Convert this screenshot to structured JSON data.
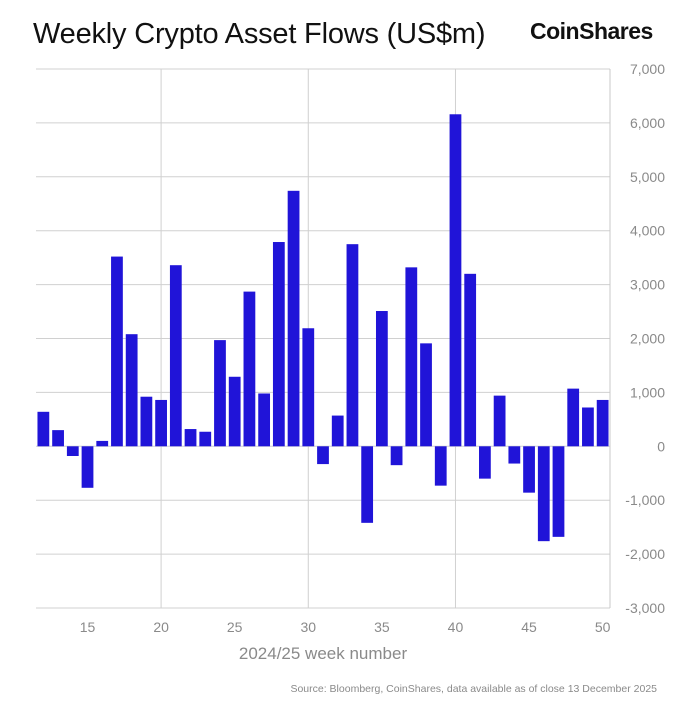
{
  "title": "Weekly Crypto Asset Flows (US$m)",
  "logo_text": "CoinShares",
  "source": "Source: Bloomberg, CoinShares, data available as of close 13 December 2025",
  "bar_color": "#2014d8",
  "chart_data": {
    "type": "bar",
    "title": "Weekly Crypto Asset Flows (US$m)",
    "xlabel": "2024/25 week number",
    "ylabel": "",
    "ylim": [
      -3000,
      7000
    ],
    "xlim": [
      11.5,
      50.5
    ],
    "y_ticks": [
      7000,
      6000,
      5000,
      4000,
      3000,
      2000,
      1000,
      0,
      -1000,
      -2000,
      -3000
    ],
    "y_tick_labels": [
      "7,000",
      "6,000",
      "5,000",
      "4,000",
      "3,000",
      "2,000",
      "1,000",
      "0",
      "-1,000",
      "-2,000",
      "-3,000"
    ],
    "x_ticks": [
      15,
      20,
      25,
      30,
      35,
      40,
      45,
      50
    ],
    "x_tick_labels": [
      "15",
      "20",
      "25",
      "30",
      "35",
      "40",
      "45",
      "50"
    ],
    "grid": "horizontal and vertical",
    "y_axis_position": "right",
    "x": [
      12,
      13,
      14,
      15,
      16,
      17,
      18,
      19,
      20,
      21,
      22,
      23,
      24,
      25,
      26,
      27,
      28,
      29,
      30,
      31,
      32,
      33,
      34,
      35,
      36,
      37,
      38,
      39,
      40,
      41,
      42,
      43,
      44,
      45,
      46,
      47,
      48,
      49,
      50
    ],
    "values": [
      640,
      300,
      -180,
      -770,
      100,
      3520,
      2080,
      920,
      860,
      3360,
      320,
      270,
      1970,
      1290,
      2870,
      980,
      3790,
      4740,
      2190,
      -330,
      570,
      3750,
      -1420,
      2510,
      -350,
      3320,
      1910,
      -730,
      6160,
      3200,
      -600,
      940,
      -320,
      -860,
      -1760,
      -1680,
      1070,
      720,
      860
    ]
  }
}
